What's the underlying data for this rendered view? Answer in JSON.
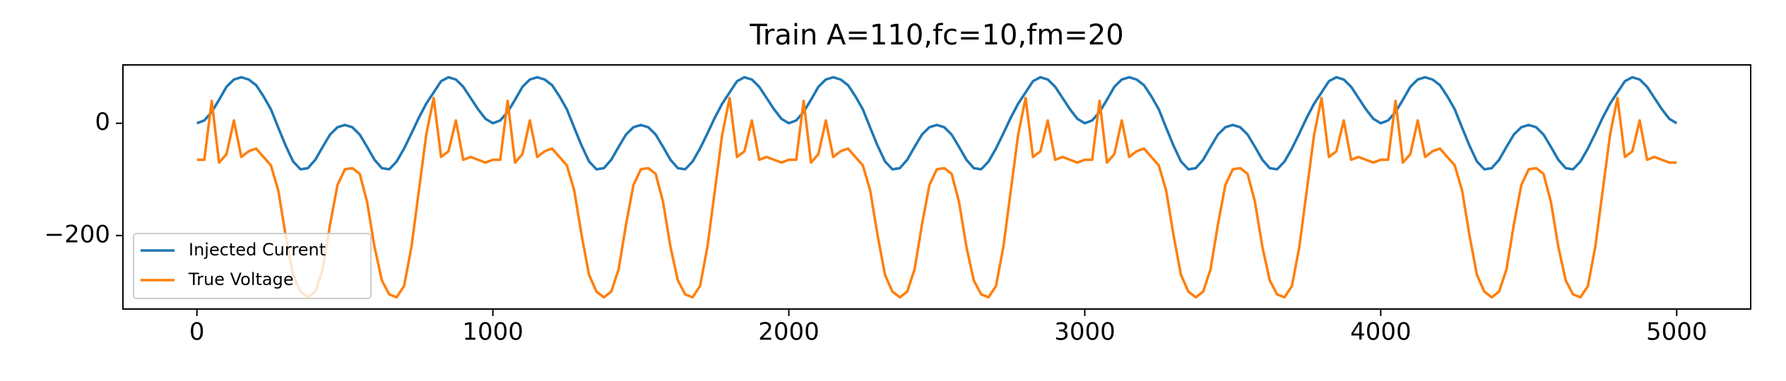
{
  "chart_data": {
    "type": "line",
    "title": "Train A=110,fc=10,fm=20",
    "x": [
      0,
      25,
      50,
      75,
      100,
      125,
      150,
      175,
      200,
      225,
      250,
      275,
      300,
      325,
      350,
      375,
      400,
      425,
      450,
      475,
      500,
      525,
      550,
      575,
      600,
      625,
      650,
      675,
      700,
      725,
      750,
      775,
      800,
      825,
      850,
      875,
      900,
      925,
      950,
      975,
      1000,
      1025,
      1050,
      1075,
      1100,
      1125,
      1150,
      1175,
      1200,
      1225,
      1250,
      1275,
      1300,
      1325,
      1350,
      1375,
      1400,
      1425,
      1450,
      1475,
      1500,
      1525,
      1550,
      1575,
      1600,
      1625,
      1650,
      1675,
      1700,
      1725,
      1750,
      1775,
      1800,
      1825,
      1850,
      1875,
      1900,
      1925,
      1950,
      1975,
      2000,
      2025,
      2050,
      2075,
      2100,
      2125,
      2150,
      2175,
      2200,
      2225,
      2250,
      2275,
      2300,
      2325,
      2350,
      2375,
      2400,
      2425,
      2450,
      2475,
      2500,
      2525,
      2550,
      2575,
      2600,
      2625,
      2650,
      2675,
      2700,
      2725,
      2750,
      2775,
      2800,
      2825,
      2850,
      2875,
      2900,
      2925,
      2950,
      2975,
      3000,
      3025,
      3050,
      3075,
      3100,
      3125,
      3150,
      3175,
      3200,
      3225,
      3250,
      3275,
      3300,
      3325,
      3350,
      3375,
      3400,
      3425,
      3450,
      3475,
      3500,
      3525,
      3550,
      3575,
      3600,
      3625,
      3650,
      3675,
      3700,
      3725,
      3750,
      3775,
      3800,
      3825,
      3850,
      3875,
      3900,
      3925,
      3950,
      3975,
      4000,
      4025,
      4050,
      4075,
      4100,
      4125,
      4150,
      4175,
      4200,
      4225,
      4250,
      4275,
      4300,
      4325,
      4350,
      4375,
      4400,
      4425,
      4450,
      4475,
      4500,
      4525,
      4550,
      4575,
      4600,
      4625,
      4650,
      4675,
      4700,
      4725,
      4750,
      4775,
      4800,
      4825,
      4850,
      4875,
      4900,
      4925,
      4950,
      4975,
      5000
    ],
    "series": [
      {
        "name": "Injected Current",
        "color": "#1f77b4",
        "values": [
          0,
          5,
          20,
          42,
          65,
          78,
          82,
          78,
          68,
          48,
          25,
          -8,
          -40,
          -68,
          -82,
          -80,
          -65,
          -42,
          -20,
          -7,
          -3,
          -7,
          -20,
          -42,
          -65,
          -80,
          -82,
          -68,
          -45,
          -18,
          10,
          35,
          55,
          75,
          82,
          78,
          65,
          45,
          25,
          8,
          0,
          5,
          20,
          42,
          65,
          78,
          82,
          78,
          68,
          48,
          25,
          -8,
          -40,
          -68,
          -82,
          -80,
          -65,
          -42,
          -20,
          -7,
          -3,
          -7,
          -20,
          -42,
          -65,
          -80,
          -82,
          -68,
          -45,
          -18,
          10,
          35,
          55,
          75,
          82,
          78,
          65,
          45,
          25,
          8,
          0,
          5,
          20,
          42,
          65,
          78,
          82,
          78,
          68,
          48,
          25,
          -8,
          -40,
          -68,
          -82,
          -80,
          -65,
          -42,
          -20,
          -7,
          -3,
          -7,
          -20,
          -42,
          -65,
          -80,
          -82,
          -68,
          -45,
          -18,
          10,
          35,
          55,
          75,
          82,
          78,
          65,
          45,
          25,
          8,
          0,
          5,
          20,
          42,
          65,
          78,
          82,
          78,
          68,
          48,
          25,
          -8,
          -40,
          -68,
          -82,
          -80,
          -65,
          -42,
          -20,
          -7,
          -3,
          -7,
          -20,
          -42,
          -65,
          -80,
          -82,
          -68,
          -45,
          -18,
          10,
          35,
          55,
          75,
          82,
          78,
          65,
          45,
          25,
          8,
          0,
          5,
          20,
          42,
          65,
          78,
          82,
          78,
          68,
          48,
          25,
          -8,
          -40,
          -68,
          -82,
          -80,
          -65,
          -42,
          -20,
          -7,
          -3,
          -7,
          -20,
          -42,
          -65,
          -80,
          -82,
          -68,
          -45,
          -18,
          10,
          35,
          55,
          75,
          82,
          78,
          65,
          45,
          25,
          8,
          0
        ]
      },
      {
        "name": "True Voltage",
        "color": "#ff7f0e",
        "values": [
          -65,
          -65,
          40,
          -70,
          -55,
          5,
          -60,
          -50,
          -45,
          -60,
          -75,
          -120,
          -200,
          -270,
          -300,
          -310,
          -300,
          -260,
          -180,
          -110,
          -82,
          -80,
          -90,
          -140,
          -220,
          -280,
          -305,
          -310,
          -290,
          -220,
          -120,
          -20,
          45,
          -60,
          -50,
          5,
          -65,
          -60,
          -65,
          -70,
          -65,
          -65,
          40,
          -70,
          -55,
          5,
          -60,
          -50,
          -45,
          -60,
          -75,
          -120,
          -200,
          -270,
          -300,
          -310,
          -300,
          -260,
          -180,
          -110,
          -82,
          -80,
          -90,
          -140,
          -220,
          -280,
          -305,
          -310,
          -290,
          -220,
          -120,
          -20,
          45,
          -60,
          -50,
          5,
          -65,
          -60,
          -65,
          -70,
          -65,
          -65,
          40,
          -70,
          -55,
          5,
          -60,
          -50,
          -45,
          -60,
          -75,
          -120,
          -200,
          -270,
          -300,
          -310,
          -300,
          -260,
          -180,
          -110,
          -82,
          -80,
          -90,
          -140,
          -220,
          -280,
          -305,
          -310,
          -290,
          -220,
          -120,
          -20,
          45,
          -60,
          -50,
          5,
          -65,
          -60,
          -65,
          -70,
          -65,
          -65,
          40,
          -70,
          -55,
          5,
          -60,
          -50,
          -45,
          -60,
          -75,
          -120,
          -200,
          -270,
          -300,
          -310,
          -300,
          -260,
          -180,
          -110,
          -82,
          -80,
          -90,
          -140,
          -220,
          -280,
          -305,
          -310,
          -290,
          -220,
          -120,
          -20,
          45,
          -60,
          -50,
          5,
          -65,
          -60,
          -65,
          -70,
          -65,
          -65,
          40,
          -70,
          -55,
          5,
          -60,
          -50,
          -45,
          -60,
          -75,
          -120,
          -200,
          -270,
          -300,
          -310,
          -300,
          -260,
          -180,
          -110,
          -82,
          -80,
          -90,
          -140,
          -220,
          -280,
          -305,
          -310,
          -290,
          -220,
          -120,
          -20,
          45,
          -60,
          -50,
          5,
          -65,
          -60,
          -65,
          -70,
          -70
        ]
      }
    ],
    "xlim": [
      -250,
      5250
    ],
    "xticks": [
      0,
      1000,
      2000,
      3000,
      4000,
      5000
    ],
    "ylim": [
      -331,
      104
    ],
    "yticks": [
      {
        "value": -200,
        "label": "−200"
      },
      0
    ],
    "legend": "lower left",
    "grid": false
  }
}
